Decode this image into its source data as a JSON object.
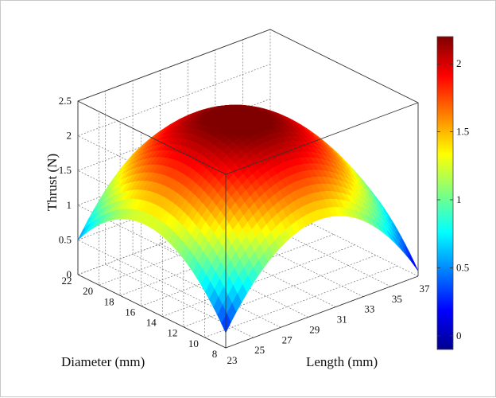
{
  "chart_data": {
    "type": "surface3d",
    "zlabel": "Thrust (N)",
    "xlabel": "Length (mm)",
    "ylabel": "Diameter (mm)",
    "x_ticks": [
      "23",
      "25",
      "27",
      "29",
      "31",
      "33",
      "35",
      "37"
    ],
    "y_ticks": [
      "8",
      "10",
      "12",
      "14",
      "16",
      "18",
      "20",
      "22"
    ],
    "z_ticks": [
      "0",
      "0.5",
      "1",
      "1.5",
      "2",
      "2.5"
    ],
    "xlim": [
      23,
      37
    ],
    "ylim": [
      8,
      22
    ],
    "zlim": [
      0,
      2.5
    ],
    "surface_peak": {
      "length": 30,
      "diameter": 15,
      "thrust": 2.2
    },
    "corner_values": [
      {
        "length": 23,
        "diameter": 8,
        "thrust": 0.0
      },
      {
        "length": 37,
        "diameter": 8,
        "thrust": 0.05
      },
      {
        "length": 23,
        "diameter": 22,
        "thrust": 0.4
      },
      {
        "length": 37,
        "diameter": 22,
        "thrust": 0.45
      }
    ],
    "grid": true,
    "colorbar": {
      "colormap": "jet",
      "range": [
        -0.1,
        2.2
      ],
      "ticks": [
        "0",
        "0.5",
        "1",
        "1.5",
        "2"
      ],
      "location": "right"
    }
  }
}
